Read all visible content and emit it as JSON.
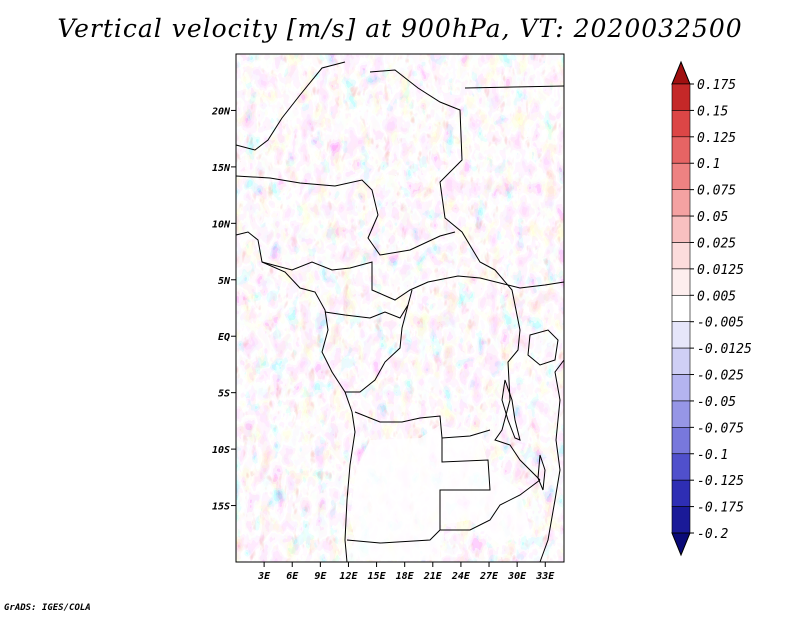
{
  "title": "Vertical velocity [m/s] at 900hPa, VT: 2020032500",
  "footer": "GrADS: IGES/COLA",
  "map": {
    "lon_range": [
      0,
      35
    ],
    "lat_range": [
      -20,
      25
    ],
    "lat_ticks": [
      {
        "value": 20,
        "label": "20N"
      },
      {
        "value": 15,
        "label": "15N"
      },
      {
        "value": 10,
        "label": "10N"
      },
      {
        "value": 5,
        "label": "5N"
      },
      {
        "value": 0,
        "label": "EQ"
      },
      {
        "value": -5,
        "label": "5S"
      },
      {
        "value": -10,
        "label": "10S"
      },
      {
        "value": -15,
        "label": "15S"
      }
    ],
    "lon_ticks": [
      {
        "value": 3,
        "label": "3E"
      },
      {
        "value": 6,
        "label": "6E"
      },
      {
        "value": 9,
        "label": "9E"
      },
      {
        "value": 12,
        "label": "12E"
      },
      {
        "value": 15,
        "label": "15E"
      },
      {
        "value": 18,
        "label": "18E"
      },
      {
        "value": 21,
        "label": "21E"
      },
      {
        "value": 24,
        "label": "24E"
      },
      {
        "value": 27,
        "label": "27E"
      },
      {
        "value": 30,
        "label": "30E"
      },
      {
        "value": 33,
        "label": "33E"
      }
    ]
  },
  "colorbar": {
    "levels": [
      "0.175",
      "0.15",
      "0.125",
      "0.1",
      "0.075",
      "0.05",
      "0.025",
      "0.0125",
      "0.005",
      "-0.005",
      "-0.0125",
      "-0.025",
      "-0.05",
      "-0.075",
      "-0.1",
      "-0.125",
      "-0.175",
      "-0.2"
    ],
    "colors": [
      "#a01010",
      "#c42828",
      "#dc4646",
      "#e66464",
      "#ee8282",
      "#f4a2a2",
      "#f8c0c0",
      "#fcdcdc",
      "#fdeeee",
      "#ffffff",
      "#e6e6fa",
      "#cfcff5",
      "#b4b4f0",
      "#9696e6",
      "#7878dc",
      "#5050cc",
      "#2e2eb4",
      "#1a1a98",
      "#0a0a78"
    ]
  }
}
